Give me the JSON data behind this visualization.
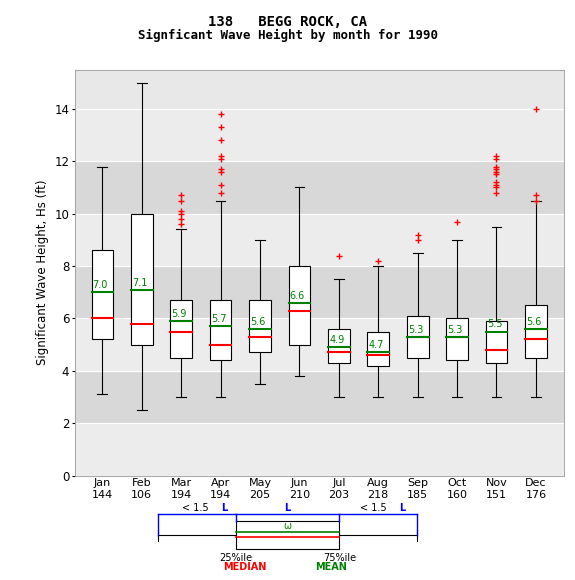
{
  "title1": "138   BEGG ROCK, CA",
  "title2": "Signficant Wave Height by month for 1990",
  "ylabel": "Significant Wave Height, Hs (ft)",
  "months": [
    "Jan",
    "Feb",
    "Mar",
    "Apr",
    "May",
    "Jun",
    "Jul",
    "Aug",
    "Sep",
    "Oct",
    "Nov",
    "Dec"
  ],
  "counts": [
    144,
    106,
    194,
    194,
    205,
    210,
    203,
    218,
    185,
    160,
    151,
    176
  ],
  "means": [
    7.0,
    7.1,
    5.9,
    5.7,
    5.6,
    6.6,
    4.9,
    4.7,
    5.3,
    5.3,
    5.5,
    5.6
  ],
  "boxes": [
    {
      "q1": 5.2,
      "median": 6.0,
      "q3": 8.6,
      "whislo": 3.1,
      "whishi": 11.8
    },
    {
      "q1": 5.0,
      "median": 5.8,
      "q3": 10.0,
      "whislo": 2.5,
      "whishi": 15.0
    },
    {
      "q1": 4.5,
      "median": 5.5,
      "q3": 6.7,
      "whislo": 3.0,
      "whishi": 9.4
    },
    {
      "q1": 4.4,
      "median": 5.0,
      "q3": 6.7,
      "whislo": 3.0,
      "whishi": 10.5
    },
    {
      "q1": 4.7,
      "median": 5.3,
      "q3": 6.7,
      "whislo": 3.5,
      "whishi": 9.0
    },
    {
      "q1": 5.0,
      "median": 6.3,
      "q3": 8.0,
      "whislo": 3.8,
      "whishi": 11.0
    },
    {
      "q1": 4.3,
      "median": 4.7,
      "q3": 5.6,
      "whislo": 3.0,
      "whishi": 7.5
    },
    {
      "q1": 4.2,
      "median": 4.6,
      "q3": 5.5,
      "whislo": 3.0,
      "whishi": 8.0
    },
    {
      "q1": 4.5,
      "median": 5.3,
      "q3": 6.1,
      "whislo": 3.0,
      "whishi": 8.5
    },
    {
      "q1": 4.4,
      "median": 5.3,
      "q3": 6.0,
      "whislo": 3.0,
      "whishi": 9.0
    },
    {
      "q1": 4.3,
      "median": 4.8,
      "q3": 5.9,
      "whislo": 3.0,
      "whishi": 9.5
    },
    {
      "q1": 4.5,
      "median": 5.2,
      "q3": 6.5,
      "whislo": 3.0,
      "whishi": 10.5
    }
  ],
  "outliers": [
    [],
    [],
    [
      9.6,
      9.8,
      10.0,
      10.1,
      10.5,
      10.7
    ],
    [
      10.8,
      11.1,
      11.6,
      11.7,
      12.1,
      12.2,
      12.8,
      13.3,
      13.8
    ],
    [],
    [],
    [
      8.4
    ],
    [
      8.2
    ],
    [
      9.0,
      9.2
    ],
    [
      9.7
    ],
    [
      10.8,
      11.0,
      11.1,
      11.2,
      11.5,
      11.6,
      11.7,
      11.8,
      12.1,
      12.2
    ],
    [
      10.5,
      10.7,
      14.0
    ]
  ],
  "ylim": [
    0,
    15.5
  ],
  "yticks": [
    0,
    2,
    4,
    6,
    8,
    10,
    12,
    14
  ],
  "plot_bg": "#e8e8e8",
  "band_light": "#ececec",
  "band_dark": "#d8d8d8",
  "box_color": "white",
  "median_color": "red",
  "mean_color": "green",
  "outlier_color": "red",
  "whisker_color": "black",
  "box_edge_color": "black",
  "fig_width": 5.75,
  "fig_height": 5.8,
  "dpi": 100
}
